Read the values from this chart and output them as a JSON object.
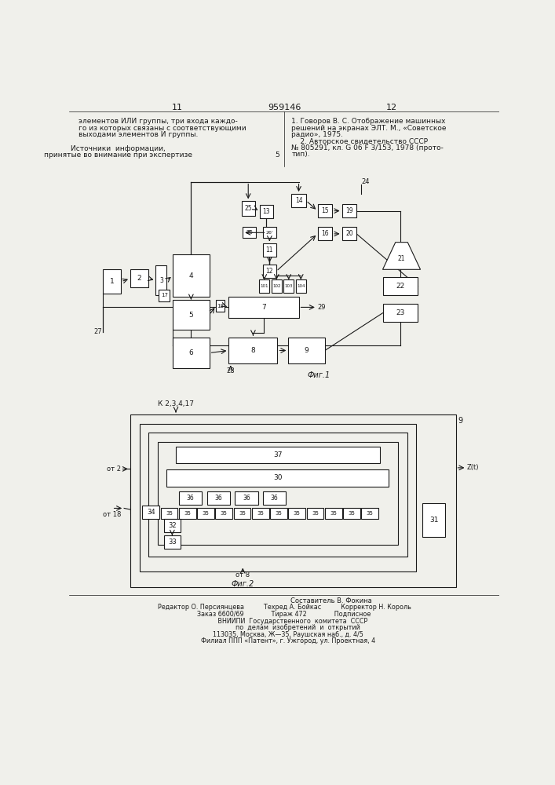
{
  "bg_color": "#f0f0eb",
  "line_color": "#1a1a1a",
  "page_num_left": "11",
  "page_num_center": "959146",
  "page_num_right": "12",
  "text_left_col": [
    "элементов ИЛИ группы, три входа каждо-",
    "го из которых связаны с соответствующими",
    "выходами элементов И группы."
  ],
  "text_left_col2": [
    "Источники  информации,",
    "принятые во внимание при экспертизе"
  ],
  "text_right_col": [
    "1. Говоров В. С. Отображение машинных",
    "решений на экранах ЭЛТ. М., «Советское",
    "радио», 1975.",
    "    2. Авторское свидетельство СССР",
    "№ 805291, кл. G 06 F 3/153, 1978 (прото-",
    "тип)."
  ],
  "fig1_label": "Фиг.1",
  "fig2_label": "Фиг.2",
  "footer_lines": [
    "Составитель В. Фокина",
    "Редактор О. Персиянцева          Техред А. Бойкас          Корректор Н. Король",
    "Заказ 6600/69              Тираж 472              Подписное",
    "         ВНИИПИ  Государственного  комитета  СССР",
    "              по  делам  изобретений  и  открытий",
    "    113035, Москва, Ж—35, Раушская наб., д. 4/5",
    "    Филиал ППП «Патент», г. Ужгород, ул. Проектная, 4"
  ]
}
